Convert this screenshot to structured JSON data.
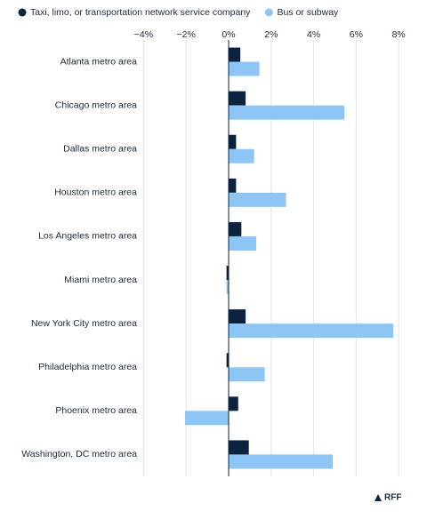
{
  "chart_data": {
    "type": "hbar",
    "categories": [
      "Atlanta metro area",
      "Chicago metro area",
      "Dallas metro area",
      "Houston metro area",
      "Los Angeles metro area",
      "Miami metro area",
      "New York City metro area",
      "Philadelphia metro area",
      "Phoenix metro area",
      "Washington, DC metro area"
    ],
    "series": [
      {
        "name": "Taxi, limo, or transportation network service company",
        "color": "#0c2340",
        "values": [
          0.55,
          0.8,
          0.35,
          0.35,
          0.6,
          -0.1,
          0.8,
          -0.1,
          0.45,
          0.95
        ]
      },
      {
        "name": "Bus or subway",
        "color": "#8dc6f5",
        "values": [
          1.45,
          5.45,
          1.2,
          2.7,
          1.3,
          -0.1,
          7.75,
          1.7,
          -2.05,
          4.9
        ]
      }
    ],
    "xlim": [
      -4,
      8
    ],
    "xticks": [
      {
        "value": -4,
        "label": "−4%"
      },
      {
        "value": -2,
        "label": "−2%"
      },
      {
        "value": 0,
        "label": "0%"
      },
      {
        "value": 2,
        "label": "2%"
      },
      {
        "value": 4,
        "label": "4%"
      },
      {
        "value": 6,
        "label": "6%"
      },
      {
        "value": 8,
        "label": "8%"
      }
    ],
    "grid": true,
    "source": "RFF"
  }
}
